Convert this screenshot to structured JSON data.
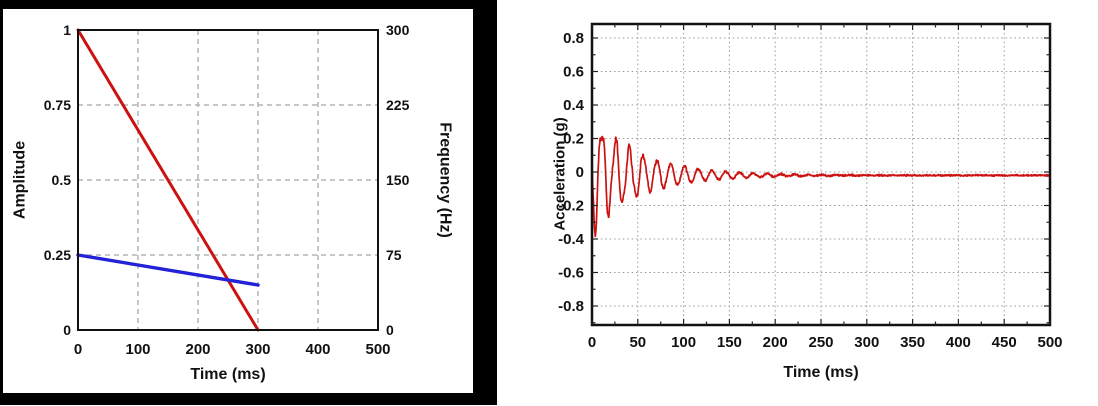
{
  "page": {
    "background": "#ffffff",
    "figure_frame_color": "#000000"
  },
  "colors": {
    "red": "#cc1111",
    "blue": "#2222d6",
    "axis_black": "#111111",
    "grid_gray": "#b3b3b3"
  },
  "chart_data": [
    {
      "type": "line",
      "title": "",
      "xlabel": "Time (ms)",
      "xlim": [
        0,
        500
      ],
      "x_ticks": [
        0,
        100,
        200,
        300,
        400,
        500
      ],
      "grid": {
        "style": "dashed",
        "color": "#b3b3b3",
        "x_lines": [
          100,
          200,
          300,
          400
        ],
        "y_lines_left": [
          0.25,
          0.5,
          0.75
        ]
      },
      "y_left": {
        "label": "Amplitude",
        "color": "#cc1111",
        "ticks": [
          1,
          0.75,
          0.5,
          0.25,
          0
        ],
        "lim": [
          0,
          1
        ]
      },
      "y_right": {
        "label": "Frequency (Hz)",
        "color": "#2222d6",
        "ticks": [
          300,
          225,
          150,
          75,
          0
        ],
        "lim": [
          0,
          300
        ]
      },
      "series": [
        {
          "name": "Amplitude",
          "axis": "left",
          "color": "#cc1111",
          "width": 3,
          "points": [
            [
              0,
              1
            ],
            [
              300,
              0
            ]
          ]
        },
        {
          "name": "Frequency (Hz)",
          "axis": "right",
          "color": "#2222d6",
          "width": 3.4,
          "points": [
            [
              0,
              75
            ],
            [
              300,
              45
            ]
          ]
        }
      ]
    },
    {
      "type": "line",
      "title": "",
      "xlabel": "Time (ms)",
      "ylabel": "Acceleration (g)",
      "xlim": [
        0,
        500
      ],
      "ylim": [
        -0.91,
        0.88
      ],
      "x_ticks": [
        0,
        50,
        100,
        150,
        200,
        250,
        300,
        350,
        400,
        450,
        500
      ],
      "y_ticks": [
        0.8,
        0.6,
        0.4,
        0.2,
        0,
        -0.2,
        -0.4,
        -0.6,
        -0.8
      ],
      "grid": {
        "style": "dotted",
        "color": "#9e9e9e",
        "x_step": 50,
        "y_step": 0.2,
        "minor_tick_x_step": 25,
        "minor_tick_y_step": 0.1
      },
      "series": [
        {
          "name": "Acceleration",
          "color": "#cc1111",
          "width": 1.7,
          "signal_model": {
            "description": "Damped ~66 Hz ring-down: starts at 0 g, swings to +0.27 g near t=11 ms and -0.29 g near t=14 ms, beats during first 50 ms, decays to low-level noise (about ±0.01 g around a -0.02 g offset) beyond ~250 ms",
            "components": [
              {
                "amp": 0.32,
                "decay_ms": 55,
                "freq_hz": 66.5,
                "phase_rad": 3.35
              },
              {
                "amp": 0.09,
                "decay_ms": 25,
                "freq_hz": 150,
                "phase_rad": 1.0
              }
            ],
            "noise": {
              "base": 0.006,
              "extra": 0.018,
              "extra_decay_ms": 70,
              "seed": 42
            },
            "offset": {
              "amp": -0.02,
              "rise_ms": 40
            },
            "sample_step_ms": 0.4,
            "peak_positive_g": 0.27,
            "peak_negative_g": -0.29
          }
        }
      ]
    }
  ]
}
